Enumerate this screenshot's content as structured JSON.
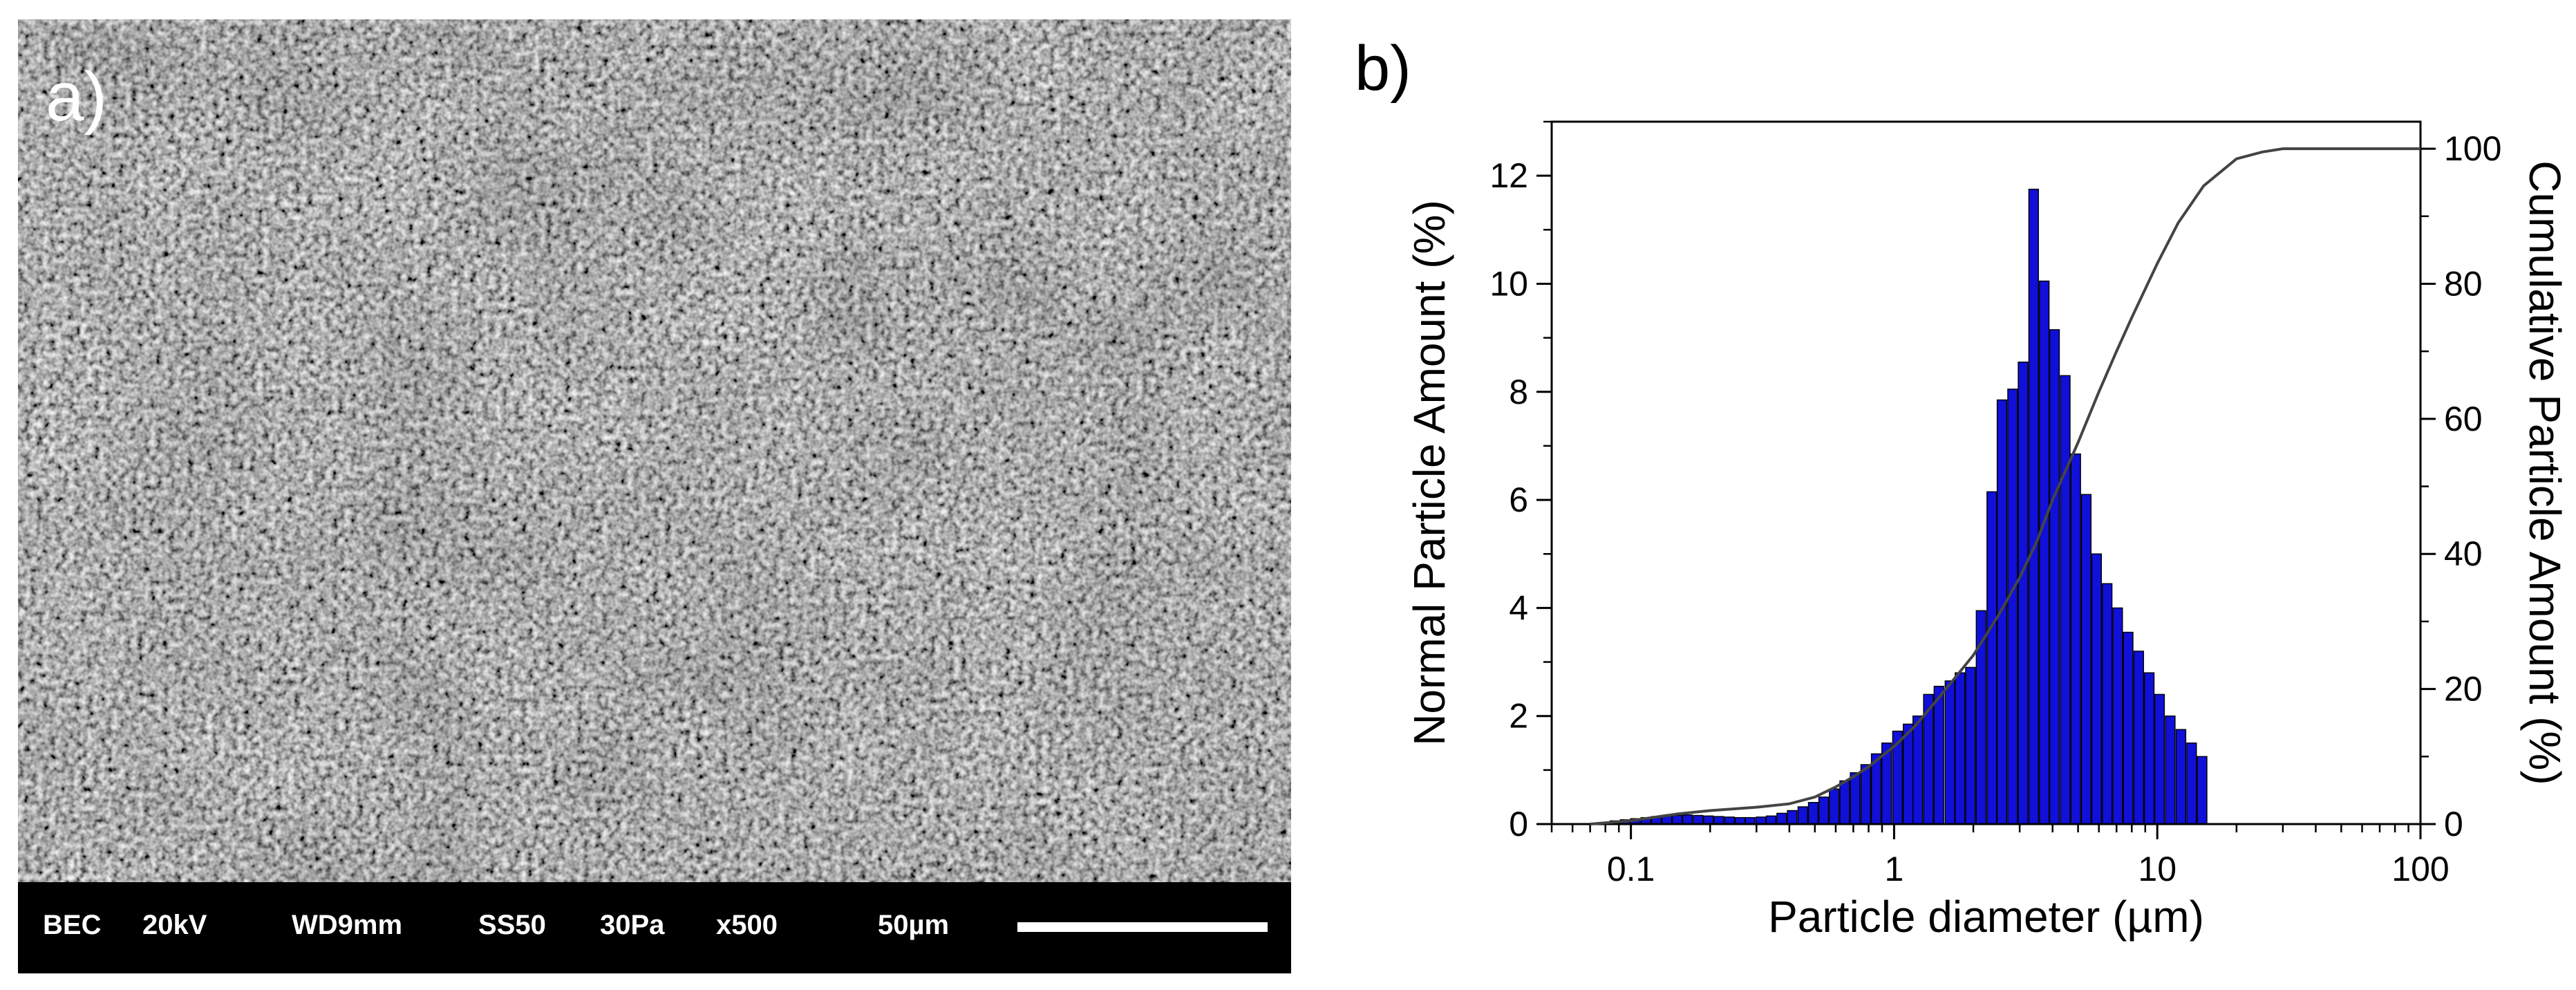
{
  "panel_a": {
    "label": "a)",
    "databar": {
      "mode": "BEC",
      "voltage": "20kV",
      "working_distance": "WD9mm",
      "spot_size": "SS50",
      "pressure": "30Pa",
      "magnification": "x500",
      "scale_text": "50µm"
    }
  },
  "panel_b": {
    "label": "b)"
  },
  "chart_data": {
    "type": "bar",
    "title": "",
    "xlabel": "Particle diameter (µm)",
    "ylabel": "Normal Particle Amount (%)",
    "y2label": "Cumulative Particle Amount (%)",
    "x_scale": "log",
    "xlim": [
      0.05,
      100
    ],
    "ylim": [
      0,
      13
    ],
    "y2lim": [
      0,
      104
    ],
    "x_ticks": [
      0.1,
      1,
      10,
      100
    ],
    "x_tick_labels": [
      "0.1",
      "1",
      "10",
      "100"
    ],
    "y_ticks": [
      0,
      2,
      4,
      6,
      8,
      10,
      12
    ],
    "y_tick_labels": [
      "0",
      "2",
      "4",
      "6",
      "8",
      "10",
      "12"
    ],
    "y2_ticks": [
      0,
      20,
      40,
      60,
      80,
      100
    ],
    "y2_tick_labels": [
      "0",
      "20",
      "40",
      "60",
      "80",
      "100"
    ],
    "grid": false,
    "bar_color": "#1010d8",
    "line_color": "#444444",
    "bars": [
      {
        "x": 0.08,
        "value": 0.03
      },
      {
        "x": 0.087,
        "value": 0.06
      },
      {
        "x": 0.095,
        "value": 0.08
      },
      {
        "x": 0.104,
        "value": 0.1
      },
      {
        "x": 0.114,
        "value": 0.12
      },
      {
        "x": 0.125,
        "value": 0.14
      },
      {
        "x": 0.137,
        "value": 0.15
      },
      {
        "x": 0.15,
        "value": 0.16
      },
      {
        "x": 0.164,
        "value": 0.17
      },
      {
        "x": 0.18,
        "value": 0.16
      },
      {
        "x": 0.197,
        "value": 0.15
      },
      {
        "x": 0.216,
        "value": 0.14
      },
      {
        "x": 0.237,
        "value": 0.13
      },
      {
        "x": 0.26,
        "value": 0.12
      },
      {
        "x": 0.284,
        "value": 0.12
      },
      {
        "x": 0.312,
        "value": 0.13
      },
      {
        "x": 0.341,
        "value": 0.15
      },
      {
        "x": 0.374,
        "value": 0.2
      },
      {
        "x": 0.41,
        "value": 0.25
      },
      {
        "x": 0.45,
        "value": 0.32
      },
      {
        "x": 0.493,
        "value": 0.4
      },
      {
        "x": 0.54,
        "value": 0.5
      },
      {
        "x": 0.592,
        "value": 0.65
      },
      {
        "x": 0.649,
        "value": 0.8
      },
      {
        "x": 0.711,
        "value": 0.95
      },
      {
        "x": 0.78,
        "value": 1.1
      },
      {
        "x": 0.855,
        "value": 1.3
      },
      {
        "x": 0.937,
        "value": 1.5
      },
      {
        "x": 1.03,
        "value": 1.72
      },
      {
        "x": 1.13,
        "value": 1.85
      },
      {
        "x": 1.23,
        "value": 2.0
      },
      {
        "x": 1.35,
        "value": 2.4
      },
      {
        "x": 1.48,
        "value": 2.55
      },
      {
        "x": 1.63,
        "value": 2.65
      },
      {
        "x": 1.78,
        "value": 2.8
      },
      {
        "x": 1.95,
        "value": 2.9
      },
      {
        "x": 2.14,
        "value": 3.95
      },
      {
        "x": 2.35,
        "value": 6.15
      },
      {
        "x": 2.57,
        "value": 7.85
      },
      {
        "x": 2.82,
        "value": 8.05
      },
      {
        "x": 3.09,
        "value": 8.55
      },
      {
        "x": 3.39,
        "value": 11.75
      },
      {
        "x": 3.72,
        "value": 10.05
      },
      {
        "x": 4.07,
        "value": 9.15
      },
      {
        "x": 4.47,
        "value": 8.3
      },
      {
        "x": 4.9,
        "value": 6.85
      },
      {
        "x": 5.37,
        "value": 6.1
      },
      {
        "x": 5.88,
        "value": 5.0
      },
      {
        "x": 6.45,
        "value": 4.45
      },
      {
        "x": 7.07,
        "value": 4.0
      },
      {
        "x": 7.75,
        "value": 3.55
      },
      {
        "x": 8.5,
        "value": 3.2
      },
      {
        "x": 9.32,
        "value": 2.8
      },
      {
        "x": 10.2,
        "value": 2.4
      },
      {
        "x": 11.2,
        "value": 2.0
      },
      {
        "x": 12.3,
        "value": 1.75
      },
      {
        "x": 13.5,
        "value": 1.5
      },
      {
        "x": 14.8,
        "value": 1.25
      }
    ],
    "cumulative": {
      "x": [
        0.07,
        0.1,
        0.15,
        0.2,
        0.3,
        0.4,
        0.5,
        0.6,
        0.7,
        0.8,
        1.0,
        1.2,
        1.5,
        2.0,
        2.5,
        3.0,
        3.5,
        4.0,
        5.0,
        6.0,
        7.0,
        8.0,
        10.0,
        12.0,
        15.0,
        20.0,
        25.0,
        30.0,
        40.0,
        100.0
      ],
      "values": [
        0,
        0.5,
        1.5,
        2.0,
        2.5,
        3.0,
        4.0,
        5.5,
        7.0,
        8.5,
        11.5,
        14.5,
        19.0,
        25.0,
        31.0,
        36.5,
        42.0,
        48.0,
        56.5,
        64.0,
        70.0,
        75.0,
        83.0,
        89.0,
        94.5,
        98.5,
        99.5,
        100.0,
        100.0,
        100.0
      ]
    }
  }
}
